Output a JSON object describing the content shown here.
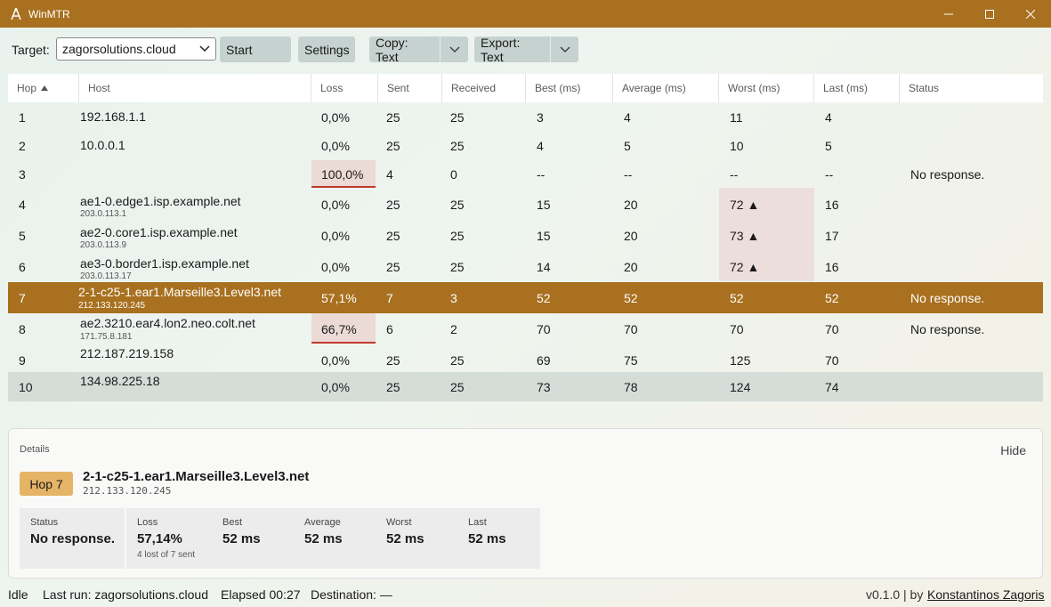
{
  "window": {
    "title": "WinMTR"
  },
  "toolbar": {
    "target_label": "Target:",
    "target_value": "zagorsolutions.cloud",
    "start_label": "Start",
    "settings_label": "Settings",
    "copy_label": "Copy: Text",
    "export_label": "Export: Text"
  },
  "columns": [
    "Hop",
    "Host",
    "Loss",
    "Sent",
    "Received",
    "Best (ms)",
    "Average (ms)",
    "Worst (ms)",
    "Last (ms)",
    "Status"
  ],
  "rows": [
    {
      "hop": "1",
      "host": "192.168.1.1",
      "ip": "",
      "loss": "0,0%",
      "sent": "25",
      "received": "25",
      "best": "3",
      "avg": "4",
      "worst": "11",
      "last": "4",
      "status": ""
    },
    {
      "hop": "2",
      "host": "10.0.0.1",
      "ip": "",
      "loss": "0,0%",
      "sent": "25",
      "received": "25",
      "best": "4",
      "avg": "5",
      "worst": "10",
      "last": "5",
      "status": ""
    },
    {
      "hop": "3",
      "host": "",
      "ip": "",
      "loss": "100,0%",
      "sent": "4",
      "received": "0",
      "best": "--",
      "avg": "--",
      "worst": "--",
      "last": "--",
      "status": "No response."
    },
    {
      "hop": "4",
      "host": "ae1-0.edge1.isp.example.net",
      "ip": "203.0.113.1",
      "loss": "0,0%",
      "sent": "25",
      "received": "25",
      "best": "15",
      "avg": "20",
      "worst": "72 ▲",
      "last": "16",
      "status": ""
    },
    {
      "hop": "5",
      "host": "ae2-0.core1.isp.example.net",
      "ip": "203.0.113.9",
      "loss": "0,0%",
      "sent": "25",
      "received": "25",
      "best": "15",
      "avg": "20",
      "worst": "73 ▲",
      "last": "17",
      "status": ""
    },
    {
      "hop": "6",
      "host": "ae3-0.border1.isp.example.net",
      "ip": "203.0.113.17",
      "loss": "0,0%",
      "sent": "25",
      "received": "25",
      "best": "14",
      "avg": "20",
      "worst": "72 ▲",
      "last": "16",
      "status": ""
    },
    {
      "hop": "7",
      "host": "2-1-c25-1.ear1.Marseille3.Level3.net",
      "ip": "212.133.120.245",
      "loss": "57,1%",
      "sent": "7",
      "received": "3",
      "best": "52",
      "avg": "52",
      "worst": "52",
      "last": "52",
      "status": "No response."
    },
    {
      "hop": "8",
      "host": "ae2.3210.ear4.lon2.neo.colt.net",
      "ip": "171.75.8.181",
      "loss": "66,7%",
      "sent": "6",
      "received": "2",
      "best": "70",
      "avg": "70",
      "worst": "70",
      "last": "70",
      "status": "No response."
    },
    {
      "hop": "9",
      "host": "212.187.219.158",
      "ip": "",
      "loss": "0,0%",
      "sent": "25",
      "received": "25",
      "best": "69",
      "avg": "75",
      "worst": "125",
      "last": "70",
      "status": ""
    },
    {
      "hop": "10",
      "host": "134.98.225.18",
      "ip": "",
      "loss": "0,0%",
      "sent": "25",
      "received": "25",
      "best": "73",
      "avg": "78",
      "worst": "124",
      "last": "74",
      "status": ""
    }
  ],
  "details": {
    "title": "Details",
    "hide_label": "Hide",
    "hop_badge": "Hop 7",
    "host": "2-1-c25-1.ear1.Marseille3.Level3.net",
    "ip": "212.133.120.245",
    "stats": [
      {
        "label": "Status",
        "value": "No response.",
        "sub": ""
      },
      {
        "label": "Loss",
        "value": "57,14%",
        "sub": "4 lost of 7 sent"
      },
      {
        "label": "Best",
        "value": "52 ms",
        "sub": ""
      },
      {
        "label": "Average",
        "value": "52 ms",
        "sub": ""
      },
      {
        "label": "Worst",
        "value": "52 ms",
        "sub": ""
      },
      {
        "label": "Last",
        "value": "52 ms",
        "sub": ""
      }
    ]
  },
  "statusbar": {
    "state": "Idle",
    "last_run": "Last run: zagorsolutions.cloud",
    "elapsed": "Elapsed 00:27",
    "destination": "Destination: —",
    "version": "v0.1.0 | by",
    "author": "Konstantinos Zagoris"
  },
  "colors": {
    "accent": "#a8701f",
    "loss_bar": "#c0392b",
    "badge": "#e5b466"
  }
}
